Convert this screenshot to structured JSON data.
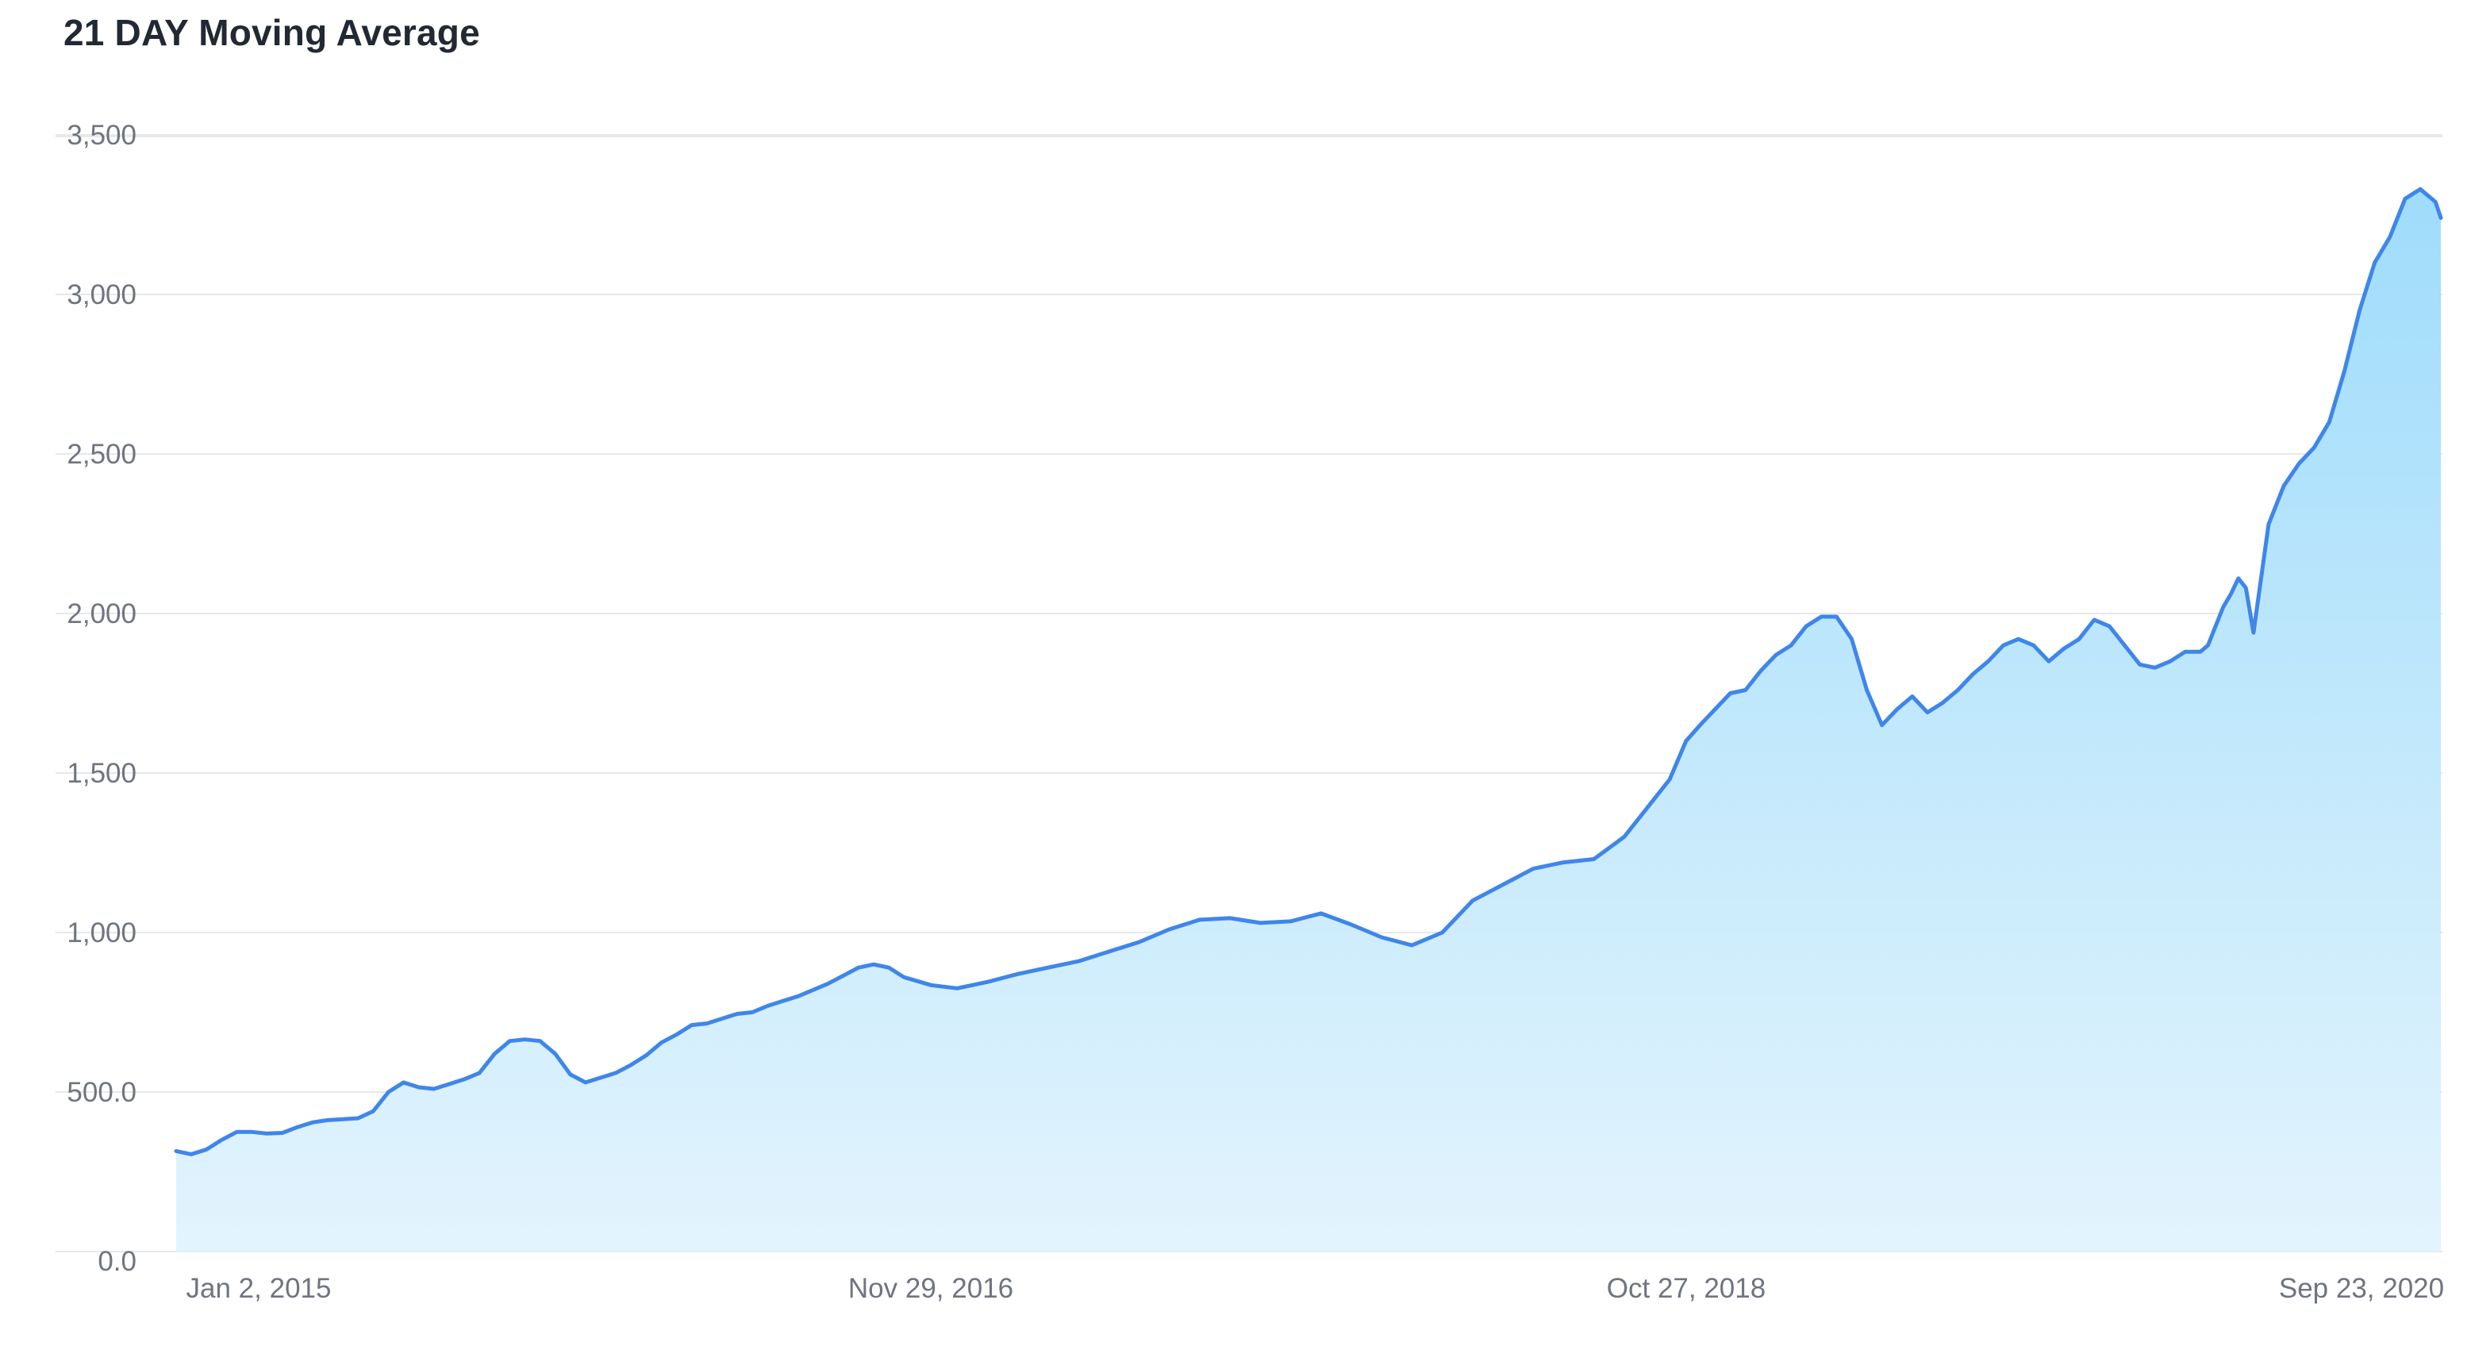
{
  "chart_data": {
    "type": "area",
    "title": "21 DAY Moving Average",
    "xlabel": "",
    "ylabel": "",
    "x_tick_labels": [
      "Jan 2, 2015",
      "Nov 29, 2016",
      "Oct 27, 2018",
      "Sep 23, 2020"
    ],
    "y_tick_labels": [
      "0.0",
      "500.0",
      "1,000",
      "1,500",
      "2,000",
      "2,500",
      "3,000",
      "3,500"
    ],
    "y_ticks": [
      0,
      500,
      1000,
      1500,
      2000,
      2500,
      3000,
      3500
    ],
    "ylim": [
      0,
      3500
    ],
    "xlim": [
      "2015-01-02",
      "2020-09-23"
    ],
    "grid": true,
    "legend": "none",
    "colors": {
      "line": "#3f86ea",
      "fill_top": "#9fdcfb",
      "fill_bottom": "#e3f4fd",
      "grid": "#e6e8eb",
      "tick_text": "#6f7480",
      "title_text": "#222933"
    },
    "series": [
      {
        "x": [
          "2015-01-02",
          "2015-01-16",
          "2015-01-30",
          "2015-02-13",
          "2015-02-27",
          "2015-03-13",
          "2015-03-27",
          "2015-04-10",
          "2015-04-24",
          "2015-05-08",
          "2015-05-22",
          "2015-06-05",
          "2015-06-19",
          "2015-07-03",
          "2015-07-17",
          "2015-07-31",
          "2015-08-14",
          "2015-08-28",
          "2015-09-11",
          "2015-09-25",
          "2015-10-09",
          "2015-10-23",
          "2015-11-06",
          "2015-11-20",
          "2015-12-04",
          "2015-12-18",
          "2016-01-01",
          "2016-01-15",
          "2016-01-29",
          "2016-02-12",
          "2016-02-26",
          "2016-03-11",
          "2016-03-25",
          "2016-04-08",
          "2016-04-22",
          "2016-05-06",
          "2016-05-20",
          "2016-06-03",
          "2016-06-17",
          "2016-07-01",
          "2016-07-15",
          "2016-07-29",
          "2016-08-12",
          "2016-08-26",
          "2016-09-09",
          "2016-09-23",
          "2016-10-07",
          "2016-10-21",
          "2016-11-04",
          "2016-11-29",
          "2016-12-23",
          "2017-01-20",
          "2017-02-17",
          "2017-03-17",
          "2017-04-14",
          "2017-05-12",
          "2017-06-09",
          "2017-07-07",
          "2017-08-04",
          "2017-09-01",
          "2017-09-29",
          "2017-10-27",
          "2017-11-24",
          "2017-12-22",
          "2018-01-19",
          "2018-02-16",
          "2018-03-16",
          "2018-04-13",
          "2018-05-11",
          "2018-06-08",
          "2018-07-06",
          "2018-08-03",
          "2018-08-31",
          "2018-09-28",
          "2018-10-12",
          "2018-10-27",
          "2018-11-09",
          "2018-11-23",
          "2018-12-07",
          "2018-12-21",
          "2019-01-04",
          "2019-01-18",
          "2019-02-01",
          "2019-02-15",
          "2019-03-01",
          "2019-03-15",
          "2019-03-29",
          "2019-04-12",
          "2019-04-26",
          "2019-05-10",
          "2019-05-24",
          "2019-06-07",
          "2019-06-21",
          "2019-07-05",
          "2019-07-19",
          "2019-08-02",
          "2019-08-16",
          "2019-08-30",
          "2019-09-13",
          "2019-09-27",
          "2019-10-11",
          "2019-10-25",
          "2019-11-08",
          "2019-11-22",
          "2019-12-06",
          "2019-12-20",
          "2020-01-03",
          "2020-01-17",
          "2020-01-31",
          "2020-02-14",
          "2020-02-21",
          "2020-02-28",
          "2020-03-06",
          "2020-03-13",
          "2020-03-20",
          "2020-03-27",
          "2020-04-03",
          "2020-04-17",
          "2020-05-01",
          "2020-05-15",
          "2020-05-29",
          "2020-06-12",
          "2020-06-26",
          "2020-07-10",
          "2020-07-24",
          "2020-08-07",
          "2020-08-21",
          "2020-09-04",
          "2020-09-18",
          "2020-09-23"
        ],
        "values": [
          315,
          305,
          320,
          350,
          375,
          375,
          370,
          372,
          390,
          405,
          412,
          415,
          418,
          440,
          500,
          530,
          515,
          510,
          525,
          540,
          560,
          620,
          660,
          665,
          660,
          620,
          555,
          530,
          545,
          560,
          585,
          615,
          655,
          680,
          710,
          715,
          730,
          745,
          750,
          770,
          785,
          800,
          820,
          840,
          865,
          890,
          900,
          890,
          860,
          835,
          825,
          845,
          870,
          890,
          910,
          940,
          970,
          1010,
          1040,
          1045,
          1030,
          1035,
          1060,
          1025,
          985,
          960,
          1000,
          1100,
          1150,
          1200,
          1220,
          1230,
          1300,
          1420,
          1480,
          1600,
          1650,
          1700,
          1750,
          1760,
          1820,
          1870,
          1900,
          1960,
          1990,
          1990,
          1920,
          1760,
          1650,
          1700,
          1740,
          1690,
          1720,
          1760,
          1810,
          1850,
          1900,
          1920,
          1900,
          1850,
          1890,
          1920,
          1980,
          1960,
          1900,
          1840,
          1830,
          1850,
          1880,
          1880,
          1900,
          1960,
          2020,
          2060,
          2110,
          2080,
          1940,
          2280,
          2400,
          2470,
          2520,
          2600,
          2760,
          2950,
          3100,
          3180,
          3300,
          3330,
          3290,
          3240
        ]
      }
    ]
  }
}
